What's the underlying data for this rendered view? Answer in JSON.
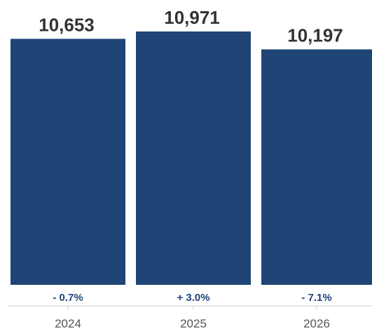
{
  "chart_data": {
    "type": "bar",
    "categories": [
      "2024",
      "2025",
      "2026"
    ],
    "values": [
      10653,
      10971,
      10197
    ],
    "value_labels": [
      "10,653",
      "10,971",
      "10,197"
    ],
    "change_labels": [
      "- 0.7%",
      "+ 3.0%",
      "- 7.1%"
    ],
    "ylim": [
      0,
      10971
    ],
    "grid": false,
    "legend": "none",
    "bar_color": "#1f4577",
    "change_color": "#1f4577",
    "value_color": "#333333",
    "tick_color": "#555555",
    "axis_color": "#cccccc"
  }
}
